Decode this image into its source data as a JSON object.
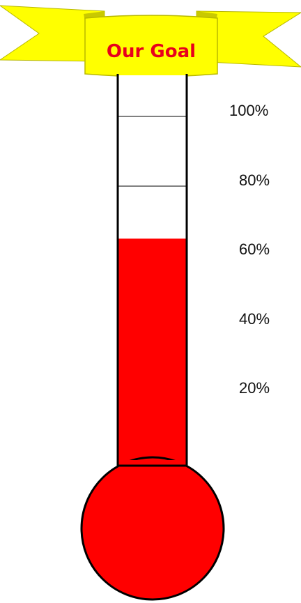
{
  "banner": {
    "title": "Our Goal"
  },
  "thermometer": {
    "scale_labels": [
      "100%",
      "80%",
      "60%",
      "40%",
      "20%"
    ],
    "fill_percent": 65
  },
  "colors": {
    "fill": "#ff0000",
    "banner": "#ffff00",
    "banner_text": "#e8001c",
    "outline": "#000000"
  }
}
